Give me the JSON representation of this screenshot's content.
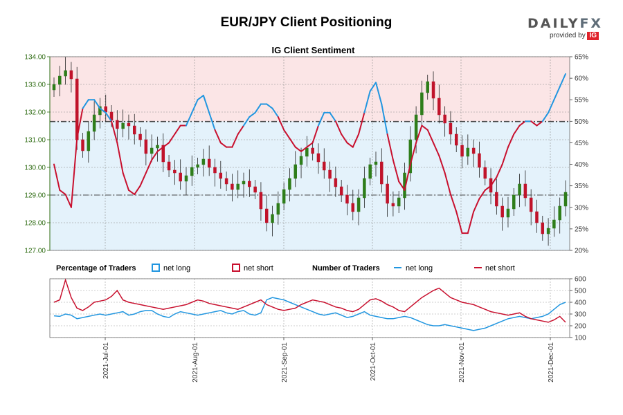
{
  "page": {
    "title": "EUR/JPY Client Positioning",
    "logo_text": "DAILYFX",
    "logo_sub": "provided by",
    "logo_badge": "IG"
  },
  "chart_data": [
    {
      "type": "candlestick",
      "title": "IG Client Sentiment",
      "ylim_left": [
        127.0,
        134.0
      ],
      "left_ticks": [
        "134.00",
        "133.00",
        "132.00",
        "131.00",
        "130.00",
        "129.00",
        "128.00",
        "127.00"
      ],
      "ylim_right": [
        20,
        65
      ],
      "right_ticks": [
        "65%",
        "60%",
        "55%",
        "50%",
        "45%",
        "40%",
        "35%",
        "30%",
        "25%",
        "20%"
      ],
      "x_ticks": [
        "2021-Jul-01",
        "2021-Aug-01",
        "2021-Sep-01",
        "2021-Oct-01",
        "2021-Nov-01",
        "2021-Dec-01"
      ],
      "reference_lines": {
        "price": [
          131.65,
          129.0
        ],
        "percent": [
          50
        ]
      },
      "colors": {
        "up": "#2e7d1a",
        "down": "#c0132a",
        "net_long": "#2196e0",
        "net_short": "#c8102e"
      },
      "price_close": [
        133.0,
        133.3,
        133.5,
        133.2,
        131.0,
        130.6,
        131.3,
        131.9,
        132.2,
        132.0,
        131.7,
        131.4,
        131.6,
        131.5,
        131.2,
        131.0,
        130.5,
        130.7,
        130.8,
        130.2,
        129.9,
        129.8,
        129.5,
        129.7,
        130.0,
        130.1,
        130.3,
        130.0,
        129.8,
        129.6,
        129.4,
        129.2,
        129.4,
        129.5,
        129.3,
        129.1,
        128.5,
        128.0,
        128.3,
        128.7,
        129.2,
        129.6,
        130.1,
        130.4,
        130.7,
        130.5,
        130.2,
        129.9,
        129.6,
        129.3,
        129.0,
        128.7,
        128.4,
        128.9,
        129.6,
        130.1,
        130.2,
        129.4,
        128.7,
        128.6,
        128.9,
        129.8,
        131.0,
        131.9,
        132.7,
        133.1,
        132.5,
        131.9,
        131.6,
        131.2,
        130.8,
        130.4,
        130.7,
        130.5,
        130.0,
        129.6,
        129.1,
        128.6,
        128.2,
        128.5,
        129.0,
        129.4,
        128.9,
        128.4,
        128.0,
        127.6,
        127.8,
        128.1,
        128.6,
        129.1
      ],
      "percent_long": [
        40,
        34,
        33,
        30,
        46,
        53,
        55,
        55,
        53,
        52,
        50,
        45,
        38,
        34,
        33,
        35,
        38,
        41,
        43,
        44,
        45,
        47,
        49,
        49,
        52,
        55,
        56,
        52,
        48,
        45,
        44,
        44,
        47,
        49,
        51,
        52,
        54,
        54,
        53,
        51,
        48,
        46,
        44,
        43,
        44,
        45,
        49,
        52,
        52,
        50,
        47,
        45,
        44,
        47,
        52,
        57,
        59,
        54,
        47,
        41,
        36,
        34,
        40,
        45,
        49,
        48,
        45,
        42,
        38,
        33,
        29,
        24,
        24,
        29,
        32,
        34,
        35,
        37,
        40,
        44,
        47,
        49,
        50,
        50,
        49,
        50,
        52,
        55,
        58,
        61
      ]
    },
    {
      "type": "line",
      "ylim": [
        100,
        600
      ],
      "y_ticks": [
        "600",
        "500",
        "400",
        "300",
        "200",
        "100"
      ],
      "legend": {
        "percentage_title": "Percentage of Traders",
        "pct_long": "net long",
        "pct_short": "net short",
        "number_title": "Number of Traders",
        "num_long": "net long",
        "num_short": "net short"
      },
      "series": [
        {
          "name": "net long",
          "values": [
            285,
            280,
            300,
            290,
            260,
            270,
            280,
            290,
            300,
            290,
            300,
            310,
            320,
            290,
            300,
            320,
            330,
            330,
            300,
            280,
            270,
            300,
            320,
            310,
            300,
            290,
            300,
            310,
            320,
            330,
            310,
            300,
            320,
            330,
            300,
            290,
            310,
            420,
            440,
            430,
            420,
            400,
            380,
            360,
            340,
            320,
            300,
            290,
            300,
            310,
            290,
            270,
            280,
            300,
            320,
            290,
            280,
            270,
            260,
            260,
            270,
            280,
            270,
            250,
            230,
            210,
            200,
            200,
            210,
            200,
            190,
            180,
            170,
            160,
            170,
            180,
            200,
            220,
            240,
            260,
            270,
            280,
            270,
            260,
            270,
            280,
            300,
            340,
            380,
            400
          ]
        },
        {
          "name": "net short",
          "values": [
            400,
            420,
            590,
            440,
            350,
            330,
            360,
            400,
            410,
            420,
            450,
            500,
            420,
            400,
            390,
            380,
            370,
            360,
            350,
            340,
            350,
            360,
            370,
            380,
            400,
            420,
            410,
            390,
            380,
            370,
            360,
            350,
            340,
            360,
            380,
            400,
            420,
            380,
            360,
            340,
            330,
            340,
            350,
            380,
            400,
            420,
            410,
            400,
            380,
            360,
            350,
            330,
            320,
            340,
            380,
            420,
            430,
            410,
            380,
            360,
            330,
            320,
            360,
            400,
            440,
            470,
            500,
            520,
            480,
            440,
            420,
            400,
            390,
            380,
            360,
            340,
            320,
            310,
            300,
            290,
            300,
            310,
            280,
            260,
            250,
            240,
            230,
            250,
            280,
            230
          ]
        }
      ]
    }
  ]
}
